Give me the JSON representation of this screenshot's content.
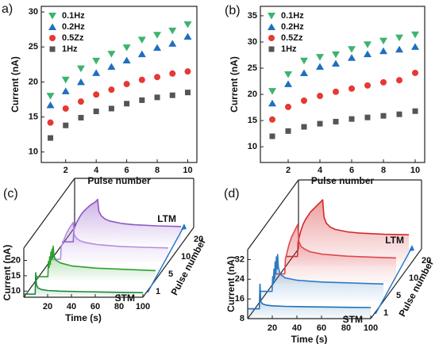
{
  "chart_data": [
    {
      "type": "scatter",
      "panel_label": "a)",
      "xlabel": "Pulse number",
      "ylabel": "Current (nA)",
      "x": [
        1,
        2,
        3,
        4,
        5,
        6,
        7,
        8,
        9,
        10
      ],
      "xlim": [
        0.4,
        10.6
      ],
      "xticks": [
        2,
        4,
        6,
        8,
        10
      ],
      "ylim": [
        8.5,
        30.8
      ],
      "yticks": [
        10,
        15,
        20,
        25,
        30
      ],
      "legend": "upper left",
      "series": [
        {
          "name": "0.1Hz",
          "color": "#3cb46e",
          "marker": "triangle-down",
          "values": [
            18.0,
            20.3,
            21.9,
            23.0,
            24.0,
            24.9,
            26.0,
            26.7,
            27.3,
            28.2
          ]
        },
        {
          "name": "0.2Hz",
          "color": "#1f6fc0",
          "marker": "triangle-up",
          "values": [
            16.7,
            18.7,
            20.0,
            21.3,
            22.2,
            23.1,
            24.0,
            24.9,
            25.5,
            26.5
          ]
        },
        {
          "name": "0.5Zz",
          "color": "#e53935",
          "marker": "circle",
          "values": [
            14.2,
            16.2,
            17.2,
            18.2,
            18.9,
            19.7,
            20.3,
            20.7,
            21.2,
            21.5
          ]
        },
        {
          "name": "1Hz",
          "color": "#555555",
          "marker": "square",
          "values": [
            12.0,
            13.8,
            14.9,
            15.8,
            16.2,
            16.9,
            17.4,
            17.8,
            18.1,
            18.5
          ]
        }
      ]
    },
    {
      "type": "scatter",
      "panel_label": "(b)",
      "xlabel": "Pulse number",
      "ylabel": "Current (nA)",
      "x": [
        1,
        2,
        3,
        4,
        5,
        6,
        7,
        8,
        9,
        10
      ],
      "xlim": [
        0.25,
        10.6
      ],
      "xticks": [
        2,
        4,
        6,
        8,
        10
      ],
      "ylim": [
        7.0,
        36.8
      ],
      "yticks": [
        10,
        15,
        20,
        25,
        30,
        35
      ],
      "legend": "upper left",
      "series": [
        {
          "name": "0.1Hz",
          "color": "#3cb46e",
          "marker": "triangle-down",
          "values": [
            20.6,
            23.8,
            26.4,
            27.1,
            27.6,
            28.6,
            29.5,
            30.2,
            30.8,
            31.4
          ]
        },
        {
          "name": "0.2Hz",
          "color": "#1f6fc0",
          "marker": "triangle-up",
          "values": [
            18.3,
            22.0,
            24.1,
            25.3,
            25.9,
            27.0,
            27.7,
            28.3,
            28.6,
            29.1
          ]
        },
        {
          "name": "0.5Zz",
          "color": "#e53935",
          "marker": "circle",
          "values": [
            15.2,
            17.6,
            18.8,
            19.7,
            20.5,
            21.1,
            21.7,
            22.3,
            22.7,
            24.1
          ]
        },
        {
          "name": "1Hz",
          "color": "#555555",
          "marker": "square",
          "values": [
            12.0,
            13.0,
            13.8,
            14.4,
            14.8,
            15.3,
            15.6,
            15.9,
            16.2,
            16.8
          ]
        }
      ]
    },
    {
      "type": "waterfall3d",
      "panel_label": "(c)",
      "xlabel": "Time (s)",
      "ylabel": "Current (nA)",
      "zlabel": "Pulse number",
      "xlim": [
        0,
        100
      ],
      "xticks": [
        20,
        40,
        60,
        80,
        100
      ],
      "ylim": [
        8,
        24
      ],
      "yticks": [
        10,
        15,
        20
      ],
      "zticks": [
        1,
        5,
        10,
        20
      ],
      "annotations": [
        "STM",
        "LTM"
      ],
      "arrow_color": "#1f78c8",
      "series": [
        {
          "color": "#1b8a3a",
          "x": [
            0,
            9.5,
            10,
            10.6,
            12,
            15,
            20,
            30,
            50,
            80,
            100
          ],
          "values": [
            9,
            9,
            16,
            12,
            11,
            10.5,
            10.2,
            10,
            9.8,
            9.6,
            9.5
          ]
        },
        {
          "color": "#2ca02c",
          "x": [
            0,
            9.5,
            10,
            10.6,
            11,
            11.6,
            12,
            12.6,
            13,
            13.6,
            14,
            14.6,
            16,
            20,
            30,
            50,
            80,
            100
          ],
          "values": [
            9,
            9,
            14,
            12,
            15.5,
            13,
            17,
            14.5,
            18,
            15.5,
            19,
            16,
            14.5,
            13.5,
            12.5,
            11.8,
            11.3,
            11
          ]
        },
        {
          "color": "#b58ce0",
          "x": [
            0,
            9.5,
            10,
            11,
            12,
            13,
            14,
            15,
            16,
            17,
            18,
            19,
            20,
            21,
            23,
            26,
            30,
            40,
            60,
            80,
            100
          ],
          "values": [
            9,
            9,
            13,
            14,
            15,
            16,
            17,
            17.8,
            18.5,
            19.2,
            19.8,
            20.3,
            21,
            17,
            15.8,
            15,
            14.5,
            13.8,
            13.2,
            12.9,
            12.7
          ]
        },
        {
          "color": "#8f55c8",
          "x": [
            0,
            9.5,
            10,
            12,
            14,
            16,
            18,
            20,
            22,
            24,
            26,
            28,
            30,
            31,
            33,
            36,
            40,
            50,
            60,
            80,
            100
          ],
          "values": [
            9,
            9,
            13,
            15,
            16.5,
            17.8,
            18.8,
            19.6,
            20.3,
            21,
            21.5,
            22,
            22.8,
            19,
            17.5,
            16.5,
            15.8,
            15,
            14.6,
            14.2,
            14
          ]
        }
      ]
    },
    {
      "type": "waterfall3d",
      "panel_label": "(d)",
      "xlabel": "Time (s)",
      "ylabel": "Current (nA)",
      "zlabel": "Pulse number",
      "xlim": [
        0,
        100
      ],
      "xticks": [
        20,
        40,
        60,
        80,
        100
      ],
      "ylim": [
        8,
        36
      ],
      "yticks": [
        8,
        16,
        24,
        32
      ],
      "zticks": [
        1,
        5,
        10,
        20
      ],
      "annotations": [
        "STM",
        "LTM"
      ],
      "arrow_color": "#1f78c8",
      "series": [
        {
          "color": "#1f6fb5",
          "x": [
            0,
            9.5,
            10,
            10.6,
            12,
            15,
            20,
            30,
            50,
            80,
            100
          ],
          "values": [
            12,
            12,
            22,
            15,
            14,
            13.5,
            13.2,
            13,
            12.8,
            12.6,
            12.5
          ]
        },
        {
          "color": "#2b7bc4",
          "x": [
            0,
            9.5,
            10,
            10.6,
            11,
            11.6,
            12,
            12.6,
            13,
            13.6,
            14,
            14.6,
            16,
            20,
            30,
            50,
            80,
            100
          ],
          "values": [
            12,
            12,
            18,
            15,
            21,
            17,
            24,
            19,
            26,
            21,
            27,
            22,
            19,
            17.5,
            16.5,
            15.8,
            15.3,
            15
          ]
        },
        {
          "color": "#e0474c",
          "x": [
            0,
            9.5,
            10,
            11,
            12,
            13,
            14,
            15,
            16,
            17,
            18,
            19,
            20,
            21,
            23,
            26,
            30,
            40,
            60,
            80,
            100
          ],
          "values": [
            12,
            12,
            18,
            20,
            22,
            24,
            25.5,
            27,
            28,
            29,
            30,
            31,
            32,
            25,
            23,
            22,
            21,
            20,
            19.2,
            18.8,
            18.5
          ]
        },
        {
          "color": "#d62728",
          "x": [
            0,
            9.5,
            10,
            12,
            14,
            16,
            18,
            20,
            22,
            24,
            26,
            28,
            30,
            31,
            33,
            36,
            40,
            50,
            60,
            80,
            100
          ],
          "values": [
            12,
            12,
            18,
            22,
            25,
            27,
            28.5,
            30,
            31,
            32,
            33,
            34,
            35,
            28,
            25.5,
            24,
            23,
            22,
            21.5,
            21,
            20.8
          ]
        }
      ]
    }
  ]
}
